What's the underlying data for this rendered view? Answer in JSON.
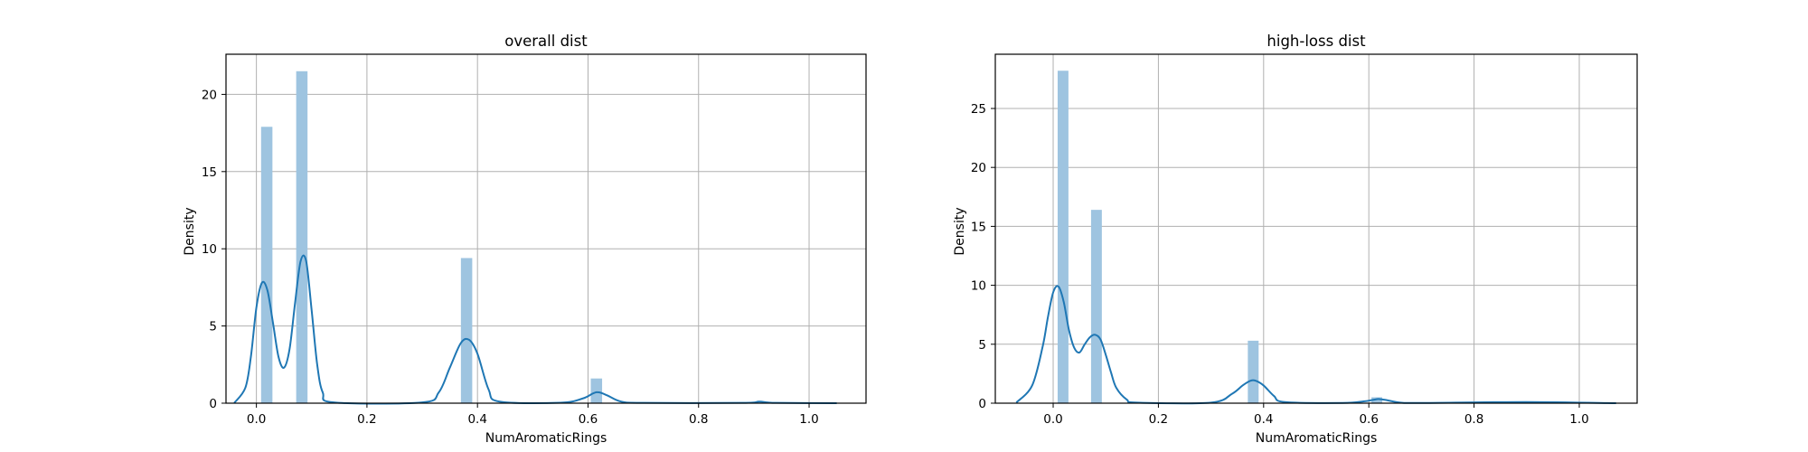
{
  "chart_data": [
    {
      "type": "bar",
      "title": "overall dist",
      "xlabel": "NumAromaticRings",
      "ylabel": "Density",
      "xlim": [
        -0.055,
        1.103
      ],
      "ylim": [
        0,
        22.6
      ],
      "xticks": [
        0.0,
        0.2,
        0.4,
        0.6,
        0.8,
        1.0
      ],
      "xtick_labels": [
        "0.0",
        "0.2",
        "0.4",
        "0.6",
        "0.8",
        "1.0"
      ],
      "yticks": [
        0,
        5,
        10,
        15,
        20
      ],
      "ytick_labels": [
        "0",
        "5",
        "10",
        "15",
        "20"
      ],
      "grid": true,
      "bar_color": "#9ec4e0",
      "bins": [
        {
          "x0": 0.0085,
          "x1": 0.029,
          "density": 17.9
        },
        {
          "x0": 0.072,
          "x1": 0.0925,
          "density": 21.5
        },
        {
          "x0": 0.37,
          "x1": 0.3905,
          "density": 9.4
        },
        {
          "x0": 0.605,
          "x1": 0.6255,
          "density": 1.6
        },
        {
          "x0": 0.905,
          "x1": 0.9255,
          "density": 0.1
        }
      ],
      "kde": {
        "name": "KDE",
        "color": "#1f77b4",
        "x": [
          -0.04,
          -0.02,
          -0.01,
          0.0,
          0.01,
          0.02,
          0.03,
          0.04,
          0.05,
          0.06,
          0.07,
          0.08,
          0.09,
          0.1,
          0.11,
          0.12,
          0.14,
          0.3,
          0.33,
          0.35,
          0.37,
          0.385,
          0.4,
          0.42,
          0.44,
          0.55,
          0.59,
          0.61,
          0.62,
          0.635,
          0.66,
          0.7,
          0.88,
          0.91,
          0.94,
          1.05
        ],
        "y": [
          0.02,
          1.0,
          3.0,
          6.2,
          7.8,
          7.3,
          5.2,
          3.0,
          2.3,
          3.5,
          6.5,
          9.2,
          9.2,
          6.0,
          2.5,
          0.7,
          0.05,
          0.05,
          0.7,
          2.3,
          3.9,
          4.1,
          3.2,
          0.9,
          0.1,
          0.03,
          0.3,
          0.65,
          0.7,
          0.5,
          0.1,
          0.02,
          0.02,
          0.1,
          0.02,
          0.0
        ]
      }
    },
    {
      "type": "bar",
      "title": "high-loss dist",
      "xlabel": "NumAromaticRings",
      "ylabel": "Density",
      "xlim": [
        -0.11,
        1.11
      ],
      "ylim": [
        0,
        29.6
      ],
      "xticks": [
        0.0,
        0.2,
        0.4,
        0.6,
        0.8,
        1.0
      ],
      "xtick_labels": [
        "0.0",
        "0.2",
        "0.4",
        "0.6",
        "0.8",
        "1.0"
      ],
      "yticks": [
        0,
        5,
        10,
        15,
        20,
        25
      ],
      "ytick_labels": [
        "0",
        "5",
        "10",
        "15",
        "20",
        "25"
      ],
      "grid": true,
      "bar_color": "#9ec4e0",
      "bins": [
        {
          "x0": 0.0085,
          "x1": 0.029,
          "density": 28.2
        },
        {
          "x0": 0.072,
          "x1": 0.0925,
          "density": 16.4
        },
        {
          "x0": 0.37,
          "x1": 0.3905,
          "density": 5.3
        },
        {
          "x0": 0.605,
          "x1": 0.6255,
          "density": 0.5
        }
      ],
      "kde": {
        "name": "KDE",
        "color": "#1f77b4",
        "x": [
          -0.07,
          -0.04,
          -0.02,
          -0.01,
          0.0,
          0.01,
          0.02,
          0.03,
          0.04,
          0.05,
          0.06,
          0.07,
          0.08,
          0.09,
          0.1,
          0.11,
          0.12,
          0.14,
          0.16,
          0.3,
          0.34,
          0.36,
          0.375,
          0.385,
          0.4,
          0.42,
          0.44,
          0.55,
          0.59,
          0.61,
          0.62,
          0.635,
          0.66,
          0.7,
          0.9,
          1.07
        ],
        "y": [
          0.05,
          1.5,
          4.8,
          7.3,
          9.4,
          9.9,
          8.6,
          6.2,
          4.7,
          4.3,
          5.0,
          5.6,
          5.8,
          5.4,
          4.1,
          2.6,
          1.3,
          0.3,
          0.05,
          0.05,
          0.8,
          1.5,
          1.9,
          1.9,
          1.5,
          0.6,
          0.1,
          0.02,
          0.15,
          0.3,
          0.35,
          0.25,
          0.05,
          0.02,
          0.1,
          0.0
        ]
      }
    }
  ]
}
